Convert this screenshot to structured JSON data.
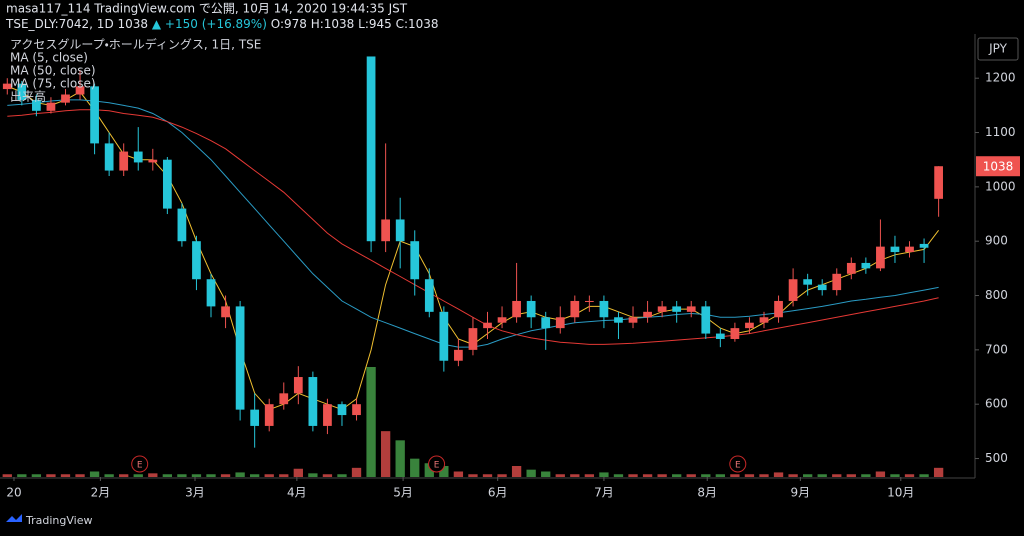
{
  "header": {
    "line1": "masa117_114 TradingView.com で公開, 10月 14, 2020 19:44:35 JST",
    "symbol": "TSE_DLY:7042, 1D",
    "last": "1038",
    "change": "▲ +150 (+16.89%)",
    "ohlc": "O:978 H:1038 L:945 C:1038"
  },
  "footer": {
    "brand": "TradingView"
  },
  "chart_data": {
    "type": "candlestick",
    "title": "アクセスグループ・ホールディングス, 1日, TSE",
    "currency": "JPY",
    "volume_label": "出来高",
    "xlim": [
      -0.5,
      66.5
    ],
    "ylim": [
      466,
      1274
    ],
    "yticks": [
      500,
      600,
      700,
      800,
      900,
      1000,
      1100,
      1200
    ],
    "grid": false,
    "xticks": [
      {
        "value": 0.46,
        "label": "20"
      },
      {
        "value": 6.4,
        "label": "2月"
      },
      {
        "value": 12.9,
        "label": "3月"
      },
      {
        "value": 19.9,
        "label": "4月"
      },
      {
        "value": 27.2,
        "label": "5月"
      },
      {
        "value": 33.7,
        "label": "6月"
      },
      {
        "value": 41.0,
        "label": "7月"
      },
      {
        "value": 48.1,
        "label": "8月"
      },
      {
        "value": 54.5,
        "label": "9月"
      },
      {
        "value": 61.4,
        "label": "10月"
      }
    ],
    "up_color": "#ef5350",
    "down_color": "#26c6da",
    "volume_up_color": "#ef5350",
    "volume_down_color": "#4caf50",
    "open": [
      1180,
      1190,
      1160,
      1140,
      1155,
      1170,
      1185,
      1080,
      1030,
      1065,
      1045,
      1050,
      960,
      900,
      830,
      760,
      780,
      590,
      560,
      600,
      620,
      650,
      560,
      600,
      580,
      1240,
      900,
      940,
      900,
      830,
      770,
      680,
      700,
      740,
      750,
      760,
      790,
      760,
      740,
      760,
      790,
      790,
      760,
      750,
      760,
      770,
      780,
      770,
      780,
      730,
      720,
      740,
      750,
      760,
      790,
      830,
      820,
      810,
      840,
      860,
      850,
      890,
      880,
      895,
      978
    ],
    "high": [
      1200,
      1195,
      1170,
      1165,
      1180,
      1215,
      1190,
      1100,
      1080,
      1110,
      1070,
      1055,
      970,
      910,
      840,
      800,
      790,
      620,
      610,
      640,
      670,
      660,
      610,
      605,
      610,
      1240,
      1080,
      980,
      920,
      850,
      780,
      720,
      760,
      770,
      780,
      860,
      800,
      770,
      780,
      800,
      800,
      800,
      770,
      780,
      790,
      790,
      790,
      790,
      790,
      740,
      750,
      760,
      770,
      800,
      850,
      840,
      830,
      850,
      870,
      870,
      940,
      910,
      900,
      905,
      1038
    ],
    "low": [
      1170,
      1150,
      1130,
      1135,
      1150,
      1160,
      1060,
      1020,
      1020,
      1030,
      1030,
      950,
      890,
      810,
      760,
      740,
      570,
      520,
      550,
      590,
      600,
      550,
      545,
      560,
      570,
      880,
      880,
      850,
      800,
      760,
      660,
      670,
      690,
      720,
      740,
      750,
      740,
      700,
      730,
      750,
      770,
      740,
      720,
      740,
      750,
      760,
      750,
      760,
      720,
      705,
      715,
      730,
      740,
      750,
      780,
      800,
      800,
      800,
      830,
      840,
      845,
      860,
      870,
      860,
      945
    ],
    "close": [
      1190,
      1160,
      1140,
      1155,
      1170,
      1185,
      1080,
      1030,
      1065,
      1045,
      1050,
      960,
      900,
      830,
      780,
      780,
      590,
      560,
      600,
      620,
      650,
      560,
      600,
      580,
      600,
      900,
      940,
      900,
      830,
      770,
      680,
      700,
      740,
      750,
      760,
      790,
      760,
      740,
      760,
      790,
      790,
      760,
      750,
      760,
      770,
      780,
      770,
      780,
      730,
      720,
      740,
      750,
      760,
      790,
      830,
      820,
      810,
      840,
      860,
      850,
      890,
      880,
      890,
      888,
      1038
    ],
    "volume": [
      30,
      30,
      30,
      30,
      30,
      30,
      60,
      30,
      30,
      30,
      40,
      30,
      30,
      30,
      30,
      30,
      50,
      30,
      30,
      30,
      90,
      40,
      30,
      30,
      100,
      1200,
      500,
      400,
      200,
      150,
      120,
      60,
      30,
      30,
      30,
      120,
      80,
      60,
      30,
      30,
      30,
      50,
      30,
      30,
      30,
      30,
      30,
      30,
      30,
      30,
      30,
      30,
      30,
      50,
      30,
      30,
      30,
      30,
      30,
      30,
      60,
      30,
      30,
      30,
      100
    ],
    "series": [
      {
        "name": "MA (5, close)",
        "color": "#f0c030",
        "values": [
          1185,
          1175,
          1155,
          1150,
          1160,
          1175,
          1140,
          1100,
          1060,
          1050,
          1050,
          1020,
          970,
          900,
          840,
          790,
          700,
          620,
          590,
          600,
          620,
          610,
          600,
          590,
          610,
          700,
          820,
          900,
          890,
          840,
          760,
          720,
          710,
          730,
          750,
          765,
          770,
          760,
          755,
          765,
          780,
          780,
          770,
          760,
          760,
          770,
          775,
          775,
          760,
          740,
          730,
          735,
          750,
          765,
          790,
          810,
          820,
          830,
          840,
          850,
          865,
          875,
          880,
          885,
          920
        ]
      },
      {
        "name": "MA (50, close)",
        "color": "#2a9bc4",
        "values": [
          1150,
          1152,
          1155,
          1158,
          1160,
          1160,
          1158,
          1155,
          1150,
          1145,
          1135,
          1120,
          1100,
          1075,
          1050,
          1020,
          990,
          960,
          930,
          900,
          870,
          840,
          815,
          790,
          775,
          760,
          750,
          740,
          730,
          720,
          710,
          705,
          705,
          710,
          720,
          728,
          735,
          740,
          745,
          750,
          752,
          754,
          755,
          758,
          760,
          762,
          765,
          767,
          765,
          760,
          760,
          762,
          765,
          768,
          772,
          776,
          780,
          785,
          790,
          793,
          797,
          800,
          805,
          810,
          815
        ]
      },
      {
        "name": "MA (75, close)",
        "color": "#e53935",
        "values": [
          1130,
          1132,
          1135,
          1137,
          1140,
          1142,
          1142,
          1140,
          1135,
          1132,
          1128,
          1120,
          1110,
          1098,
          1085,
          1070,
          1050,
          1030,
          1010,
          990,
          965,
          940,
          915,
          895,
          880,
          865,
          850,
          835,
          820,
          805,
          790,
          775,
          760,
          745,
          735,
          728,
          722,
          718,
          714,
          712,
          710,
          710,
          711,
          712,
          714,
          716,
          718,
          720,
          722,
          724,
          727,
          730,
          735,
          740,
          745,
          750,
          755,
          760,
          765,
          770,
          775,
          780,
          785,
          790,
          796
        ]
      }
    ],
    "events": [
      {
        "label": "E",
        "x": 9.1
      },
      {
        "label": "E",
        "x": 29.5
      },
      {
        "label": "E",
        "x": 50.2
      }
    ]
  }
}
